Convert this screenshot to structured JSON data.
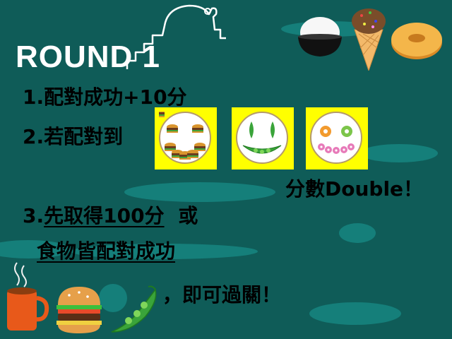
{
  "slide": {
    "title": "ROUND 1",
    "rule1": "1.配對成功+10分",
    "rule2": "2.若配對到",
    "double_text": "分數Double！",
    "rule3_line1_a": "3.",
    "rule3_line1_b": "先取得100分",
    "rule3_line1_c": "或",
    "rule3_line2": "食物皆配對成功",
    "ending": "，即可過關！"
  },
  "plates": [
    {
      "content": "burgers-plate"
    },
    {
      "content": "peas-plate"
    },
    {
      "content": "donuts-plate"
    }
  ],
  "colors": {
    "background": "#0f5c58",
    "blob": "#157f7a",
    "tile": "#ffff00",
    "title": "#ffffff"
  }
}
